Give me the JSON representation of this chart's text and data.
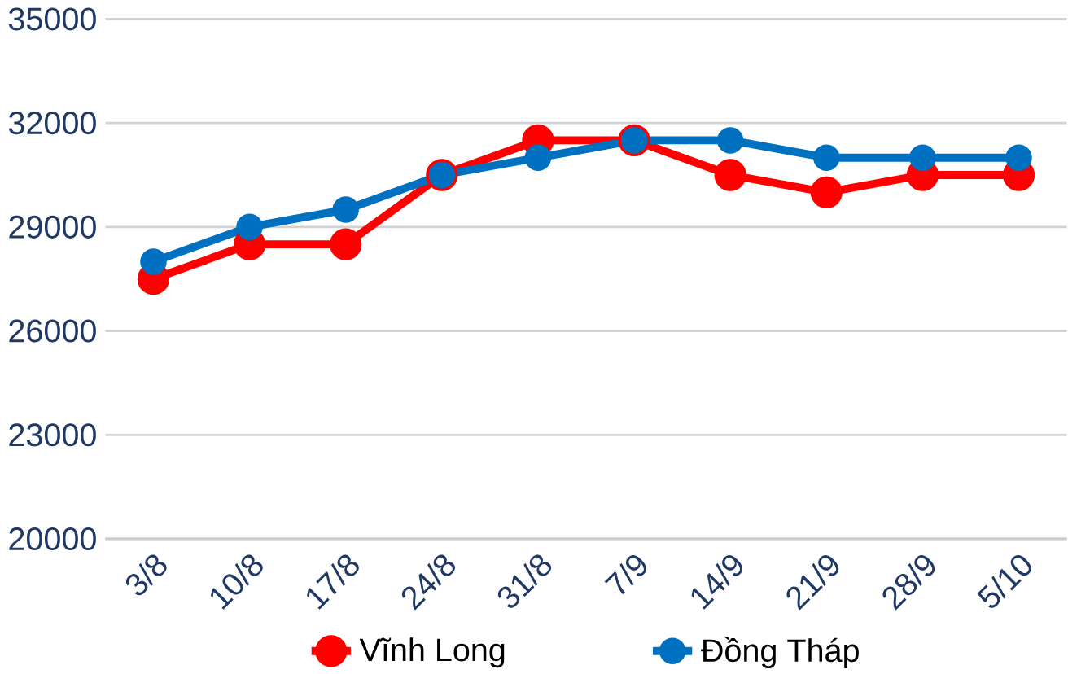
{
  "chart_data": {
    "type": "line",
    "categories": [
      "3/8",
      "10/8",
      "17/8",
      "24/8",
      "31/8",
      "7/9",
      "14/9",
      "21/9",
      "28/9",
      "5/10"
    ],
    "series": [
      {
        "name": "Vĩnh Long",
        "color": "#ff0000",
        "values": [
          27500,
          28500,
          28500,
          30500,
          31500,
          31500,
          30500,
          30000,
          30500,
          30500
        ]
      },
      {
        "name": "Đồng Tháp",
        "color": "#0070c0",
        "values": [
          28000,
          29000,
          29500,
          30500,
          31000,
          31500,
          31500,
          31000,
          31000,
          31000
        ]
      }
    ],
    "ylim": [
      20000,
      35000
    ],
    "yticks": [
      20000,
      23000,
      26000,
      29000,
      32000,
      35000
    ],
    "grid": "y",
    "legend": "bottom",
    "marker": "circle",
    "line_style": "solid"
  }
}
